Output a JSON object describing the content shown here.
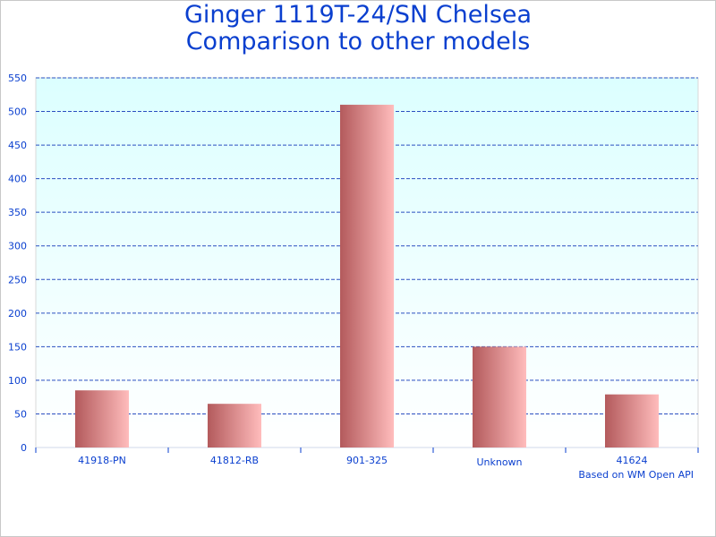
{
  "chart_data": {
    "type": "bar",
    "title": [
      "Ginger 1119T-24/SN Chelsea",
      "Comparison to other models"
    ],
    "categories": [
      "41918-PN",
      "41812-RB",
      "901-325",
      "Unknown",
      "41624"
    ],
    "values": [
      85,
      65,
      510,
      150,
      79
    ],
    "ylim": [
      0,
      550
    ],
    "yticks": [
      0,
      50,
      100,
      150,
      200,
      250,
      300,
      350,
      400,
      450,
      500,
      550
    ],
    "grid": true,
    "xlabel": "",
    "ylabel": "",
    "annotation": "Based on WM Open API",
    "colors": {
      "text": "#0a3fcf",
      "grid": "#2a4fc0",
      "bar_dark": "#b35a5c",
      "bar_light": "#ffbcbc",
      "plot_top": "#dcffff",
      "plot_bottom": "#ffffff"
    }
  }
}
